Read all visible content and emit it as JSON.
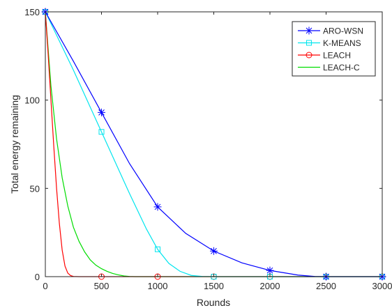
{
  "chart_data": {
    "type": "line",
    "title": "",
    "xlabel": "Rounds",
    "ylabel": "Total energy remaining",
    "xlim": [
      0,
      3000
    ],
    "ylim": [
      0,
      150
    ],
    "xticks": [
      0,
      500,
      1000,
      1500,
      2000,
      2500,
      3000
    ],
    "yticks": [
      0,
      50,
      100,
      150
    ],
    "grid": false,
    "legend_position": "top-right",
    "series": [
      {
        "name": "ARO-WSN",
        "color": "#0000ff",
        "marker": "asterisk",
        "markers": [
          [
            0,
            150
          ],
          [
            500,
            93
          ],
          [
            1000,
            39.5
          ],
          [
            1500,
            14.5
          ],
          [
            2000,
            3.5
          ],
          [
            2500,
            0
          ],
          [
            3000,
            0
          ]
        ],
        "curve": [
          [
            0,
            150
          ],
          [
            250,
            122
          ],
          [
            500,
            93
          ],
          [
            750,
            64
          ],
          [
            1000,
            39.5
          ],
          [
            1250,
            24.5
          ],
          [
            1500,
            14.5
          ],
          [
            1750,
            7.8
          ],
          [
            2000,
            3.5
          ],
          [
            2250,
            0.9
          ],
          [
            2400,
            0.1
          ],
          [
            2500,
            0
          ],
          [
            3000,
            0
          ]
        ]
      },
      {
        "name": "K-MEANS",
        "color": "#00e5ee",
        "marker": "square",
        "markers": [
          [
            0,
            150
          ],
          [
            500,
            82
          ],
          [
            1000,
            15.5
          ],
          [
            1500,
            0
          ],
          [
            2000,
            0
          ],
          [
            2500,
            0
          ],
          [
            3000,
            0
          ]
        ],
        "curve": [
          [
            0,
            150
          ],
          [
            250,
            117
          ],
          [
            500,
            82
          ],
          [
            750,
            47
          ],
          [
            900,
            27
          ],
          [
            1000,
            15.5
          ],
          [
            1100,
            7.5
          ],
          [
            1200,
            3
          ],
          [
            1300,
            0.7
          ],
          [
            1400,
            0.1
          ],
          [
            1500,
            0
          ],
          [
            3000,
            0
          ]
        ]
      },
      {
        "name": "LEACH",
        "color": "#ff0000",
        "marker": "circle",
        "markers": [
          [
            0,
            150
          ],
          [
            500,
            0
          ],
          [
            1000,
            0
          ],
          [
            1500,
            0
          ],
          [
            2000,
            0
          ],
          [
            2500,
            0
          ],
          [
            3000,
            0
          ]
        ],
        "curve": [
          [
            0,
            150
          ],
          [
            25,
            126
          ],
          [
            50,
            100
          ],
          [
            75,
            74
          ],
          [
            100,
            50
          ],
          [
            125,
            30
          ],
          [
            150,
            15
          ],
          [
            175,
            6
          ],
          [
            200,
            2
          ],
          [
            225,
            0.6
          ],
          [
            250,
            0.1
          ],
          [
            300,
            0
          ],
          [
            3000,
            0
          ]
        ]
      },
      {
        "name": "LEACH-C",
        "color": "#00dd00",
        "marker": "none",
        "markers": [],
        "curve": [
          [
            0,
            150
          ],
          [
            50,
            108
          ],
          [
            100,
            78
          ],
          [
            150,
            56
          ],
          [
            200,
            40
          ],
          [
            250,
            28
          ],
          [
            300,
            20
          ],
          [
            350,
            14
          ],
          [
            400,
            9.5
          ],
          [
            450,
            6.5
          ],
          [
            500,
            4.5
          ],
          [
            550,
            3
          ],
          [
            600,
            1.8
          ],
          [
            650,
            1
          ],
          [
            700,
            0.4
          ],
          [
            750,
            0.1
          ],
          [
            800,
            0
          ],
          [
            3000,
            0
          ]
        ]
      }
    ]
  }
}
